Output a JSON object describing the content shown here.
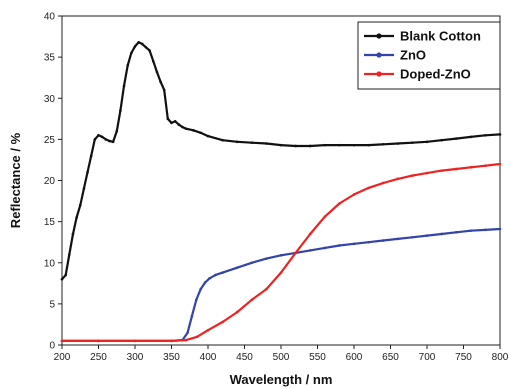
{
  "chart_data": {
    "type": "line",
    "title": "",
    "xlabel": "Wavelength / nm",
    "ylabel": "Reflectance / %",
    "xlim": [
      200,
      800
    ],
    "ylim": [
      0,
      40
    ],
    "xticks": [
      200,
      250,
      300,
      350,
      400,
      450,
      500,
      550,
      600,
      650,
      700,
      750,
      800
    ],
    "yticks": [
      0,
      5,
      10,
      15,
      20,
      25,
      30,
      35,
      40
    ],
    "grid": false,
    "legend_position": "top-right",
    "series": [
      {
        "name": "Blank Cotton",
        "color": "#111111",
        "x": [
          200,
          205,
          210,
          215,
          220,
          225,
          230,
          235,
          240,
          245,
          250,
          255,
          260,
          265,
          270,
          275,
          280,
          285,
          290,
          295,
          300,
          305,
          310,
          315,
          320,
          325,
          330,
          335,
          340,
          345,
          350,
          355,
          360,
          365,
          370,
          380,
          390,
          400,
          420,
          440,
          460,
          480,
          500,
          520,
          540,
          560,
          580,
          600,
          620,
          640,
          660,
          680,
          700,
          720,
          740,
          760,
          780,
          800
        ],
        "y": [
          8,
          8.5,
          11,
          13.5,
          15.5,
          17,
          19,
          21,
          23,
          25,
          25.5,
          25.3,
          25,
          24.8,
          24.7,
          26,
          28.5,
          31.5,
          34,
          35.5,
          36.3,
          36.8,
          36.6,
          36.2,
          35.8,
          34.5,
          33.2,
          32,
          31,
          27.5,
          27,
          27.2,
          26.8,
          26.5,
          26.3,
          26.1,
          25.8,
          25.4,
          24.9,
          24.7,
          24.6,
          24.5,
          24.3,
          24.2,
          24.2,
          24.3,
          24.3,
          24.3,
          24.3,
          24.4,
          24.5,
          24.6,
          24.7,
          24.9,
          25.1,
          25.3,
          25.5,
          25.6
        ]
      },
      {
        "name": "ZnO",
        "color": "#3344aa",
        "x": [
          200,
          250,
          300,
          350,
          365,
          372,
          378,
          384,
          390,
          396,
          402,
          410,
          420,
          440,
          460,
          480,
          500,
          520,
          540,
          560,
          580,
          600,
          620,
          640,
          660,
          680,
          700,
          720,
          740,
          760,
          780,
          800
        ],
        "y": [
          0.5,
          0.5,
          0.5,
          0.5,
          0.6,
          1.5,
          3.5,
          5.5,
          6.8,
          7.6,
          8.1,
          8.5,
          8.8,
          9.4,
          10,
          10.5,
          10.9,
          11.2,
          11.5,
          11.8,
          12.1,
          12.3,
          12.5,
          12.7,
          12.9,
          13.1,
          13.3,
          13.5,
          13.7,
          13.9,
          14,
          14.1
        ]
      },
      {
        "name": "Doped-ZnO",
        "color": "#ee2222",
        "x": [
          200,
          250,
          300,
          350,
          370,
          385,
          400,
          420,
          440,
          460,
          480,
          500,
          520,
          540,
          560,
          580,
          600,
          620,
          640,
          660,
          680,
          700,
          720,
          740,
          760,
          780,
          800
        ],
        "y": [
          0.5,
          0.5,
          0.5,
          0.5,
          0.6,
          1,
          1.8,
          2.8,
          4,
          5.5,
          6.8,
          8.8,
          11.2,
          13.5,
          15.6,
          17.2,
          18.3,
          19.1,
          19.7,
          20.2,
          20.6,
          20.9,
          21.2,
          21.4,
          21.6,
          21.8,
          22
        ]
      }
    ]
  }
}
